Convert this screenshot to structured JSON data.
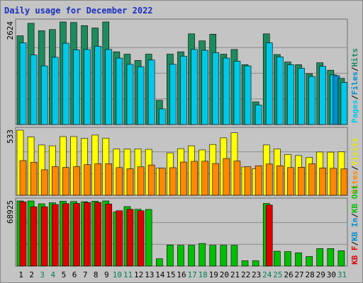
{
  "chart_data": {
    "title": "Daily usage for December 2022",
    "days": [
      "1",
      "2",
      "3",
      "4",
      "5",
      "6",
      "7",
      "8",
      "9",
      "10",
      "11",
      "12",
      "13",
      "14",
      "15",
      "16",
      "17",
      "18",
      "19",
      "20",
      "21",
      "22",
      "23",
      "24",
      "25",
      "26",
      "27",
      "28",
      "29",
      "30",
      "31"
    ],
    "weekend_days": [
      "3",
      "4",
      "10",
      "11",
      "17",
      "18",
      "24",
      "25",
      "31"
    ],
    "colors": {
      "weekday": "#000000",
      "weekend": "#00805c",
      "hits": "#1c8c5c",
      "files": "#00c8e8",
      "pages": "#00b0f0",
      "visits": "#ffff00",
      "sites": "#ff8800",
      "kbin": "#00c000",
      "kbout": "#e00000",
      "grid": "#8c8c8c",
      "plot_bg": "#c4c4c4"
    },
    "panels": [
      {
        "type": "bar",
        "ymax_label": "2624",
        "ylim": [
          0,
          2624
        ],
        "legend": [
          {
            "name": "Pages",
            "color": "#00c8e8"
          },
          {
            "name": "/",
            "color": "#000000"
          },
          {
            "name": "Files",
            "color": "#0090d0"
          },
          {
            "name": "/",
            "color": "#000000"
          },
          {
            "name": "Hits",
            "color": "#1c8c5c"
          }
        ],
        "series": [
          {
            "name": "Hits",
            "color": "#1c8c5c",
            "values": [
              2270,
              2590,
              2400,
              2430,
              2640,
              2610,
              2530,
              2470,
              2640,
              1860,
              1800,
              1640,
              1800,
              620,
              1800,
              1860,
              2320,
              2140,
              2310,
              1800,
              1920,
              1530,
              580,
              2320,
              1790,
              1600,
              1530,
              1300,
              1580,
              1390,
              1180
            ]
          },
          {
            "name": "Files",
            "color": "#00c8e8",
            "values": [
              2090,
              1780,
              1500,
              1720,
              2080,
              1910,
              1920,
              2000,
              1920,
              1700,
              1540,
              1480,
              1650,
              400,
              1540,
              1750,
              1920,
              1900,
              1840,
              1700,
              1620,
              1500,
              500,
              2090,
              1730,
              1530,
              1440,
              1230,
              1490,
              1270,
              1080
            ]
          },
          {
            "name": "Pages",
            "color": "#0090d0",
            "values": [
              0,
              0,
              0,
              0,
              0,
              0,
              0,
              0,
              0,
              0,
              0,
              0,
              0,
              0,
              0,
              0,
              0,
              0,
              0,
              0,
              0,
              0,
              0,
              0,
              0,
              0,
              0,
              0,
              0,
              1250,
              0
            ]
          }
        ]
      },
      {
        "type": "bar",
        "ymax_label": "533",
        "ylim": [
          0,
          533
        ],
        "legend": [
          {
            "name": "Sites",
            "color": "#ff8800"
          },
          {
            "name": "/",
            "color": "#000000"
          },
          {
            "name": "Visits",
            "color": "#e8e800"
          }
        ],
        "series": [
          {
            "name": "Visits",
            "color": "#ffff00",
            "values": [
              533,
              478,
              412,
              405,
              481,
              481,
              466,
              493,
              468,
              379,
              378,
              380,
              376,
              222,
              347,
              382,
              405,
              371,
              416,
              470,
              512,
              232,
              218,
              412,
              380,
              334,
              325,
              311,
              354,
              353,
              356
            ]
          },
          {
            "name": "Sites",
            "color": "#ff8800",
            "values": [
              284,
              270,
              209,
              235,
              228,
              234,
              251,
              258,
              259,
              227,
              217,
              233,
              248,
              222,
              226,
              272,
              278,
              279,
              260,
              301,
              280,
              234,
              242,
              256,
              242,
              227,
              230,
              258,
              224,
              221,
              216
            ]
          }
        ]
      },
      {
        "type": "bar",
        "ymax_label": "68925",
        "ylim": [
          0,
          68925
        ],
        "legend": [
          {
            "name": "KB F",
            "color": "#e00000"
          },
          {
            "name": "/",
            "color": "#000000"
          },
          {
            "name": "KB In",
            "color": "#0090d0"
          },
          {
            "name": "/",
            "color": "#000000"
          },
          {
            "name": "KB Out",
            "color": "#00c000"
          }
        ],
        "series": [
          {
            "name": "KB Out",
            "color": "#00c000",
            "values": [
              68925,
              69000,
              65900,
              67000,
              68600,
              68300,
              68100,
              68600,
              69000,
              57300,
              63000,
              60100,
              59900,
              7700,
              22200,
              22000,
              22000,
              23900,
              22000,
              22000,
              22000,
              5600,
              5600,
              66300,
              15700,
              15300,
              14000,
              10100,
              18500,
              18500,
              16200
            ]
          },
          {
            "name": "KB F",
            "color": "#e00000",
            "values": [
              68000,
              62800,
              62800,
              65200,
              66100,
              66300,
              67300,
              67300,
              65700,
              58600,
              60000,
              58500,
              0,
              0,
              0,
              0,
              0,
              0,
              0,
              0,
              0,
              0,
              0,
              64600,
              0,
              0,
              0,
              0,
              0,
              0,
              0
            ]
          }
        ]
      }
    ]
  }
}
